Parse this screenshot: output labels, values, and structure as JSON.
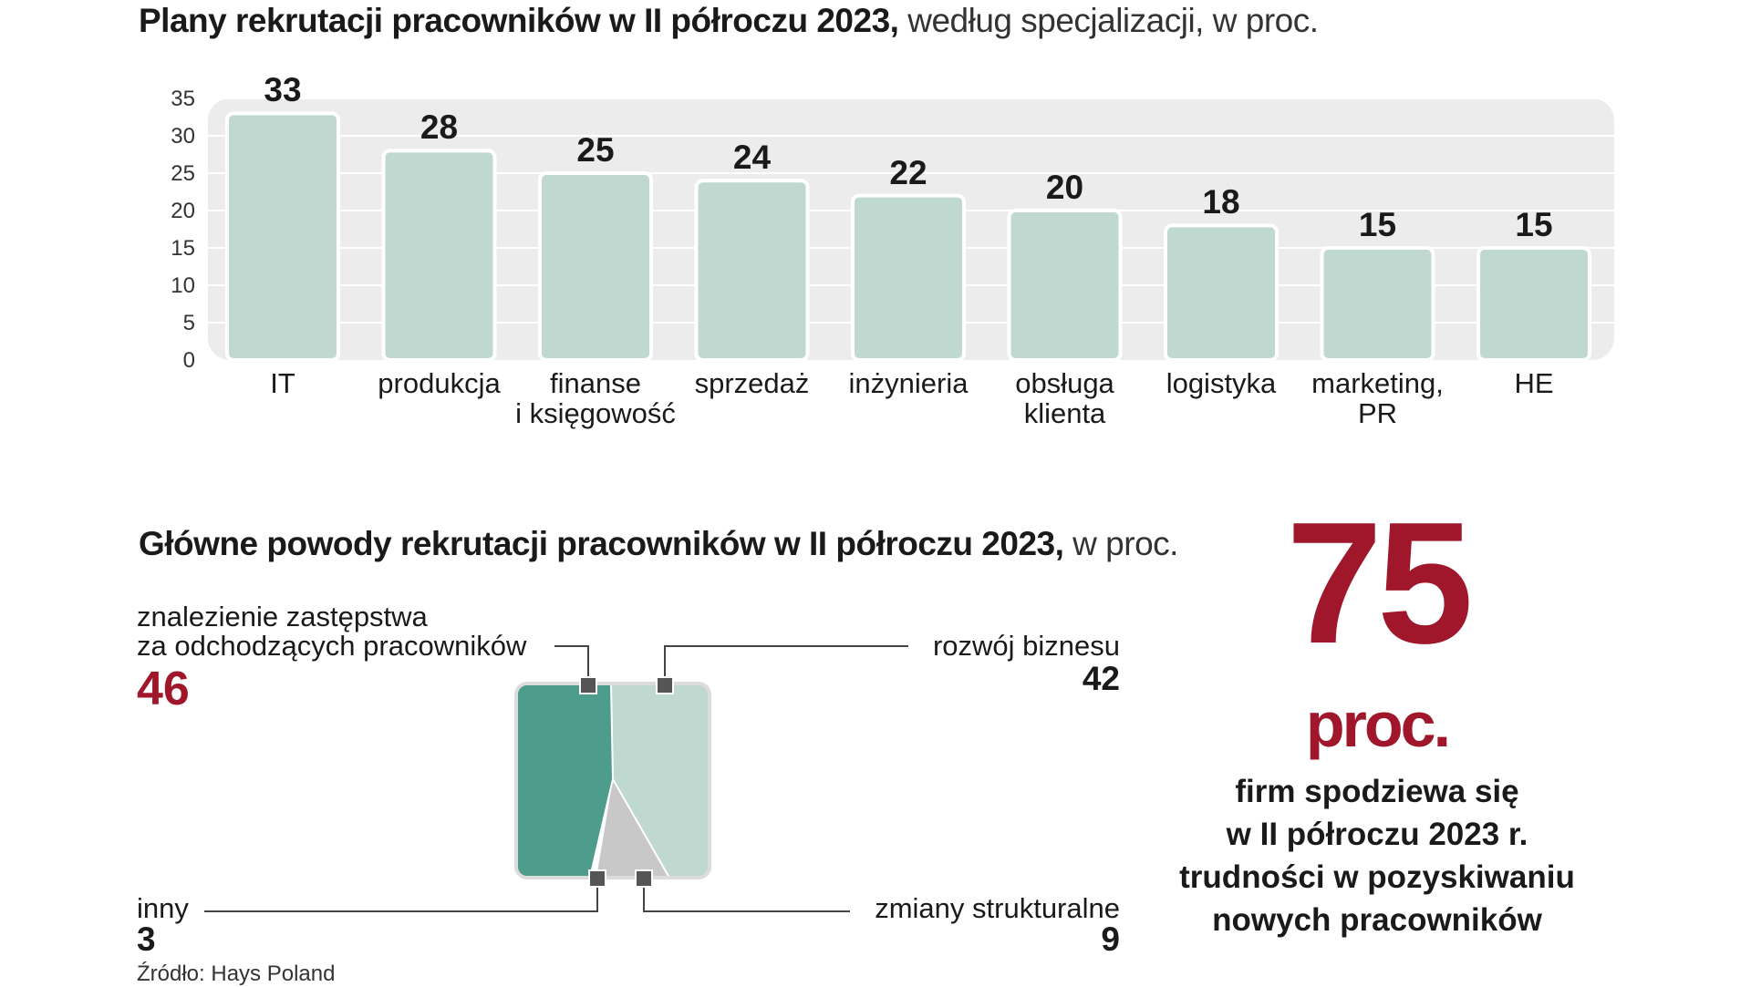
{
  "chart1": {
    "title_bold": "Plany rekrutacji pracowników w II półroczu 2023,",
    "title_rest": " według specjalizacji, w proc.",
    "y_ticks": [
      "35",
      "30",
      "25",
      "20",
      "15",
      "10",
      "5",
      "0"
    ]
  },
  "chart_data": [
    {
      "type": "bar",
      "categories": [
        "IT",
        "produkcja",
        "finanse i księgowość",
        "sprzedaż",
        "inżynieria",
        "obsługa klienta",
        "logistyka",
        "marketing, PR",
        "HE"
      ],
      "category_lines": [
        [
          "IT"
        ],
        [
          "produkcja"
        ],
        [
          "finanse",
          "i księgowość"
        ],
        [
          "sprzedaż"
        ],
        [
          "inżynieria"
        ],
        [
          "obsługa",
          "klienta"
        ],
        [
          "logistyka"
        ],
        [
          "marketing,",
          "PR"
        ],
        [
          "HE"
        ]
      ],
      "values": [
        33,
        28,
        25,
        24,
        22,
        20,
        18,
        15,
        15
      ],
      "ylim": [
        0,
        35
      ],
      "grid": true,
      "bar_color": "#c0d9d0"
    },
    {
      "type": "pie",
      "title": "Główne powody rekrutacji pracowników w II półroczu 2023,",
      "segments": [
        {
          "label_lines": [
            "znalezienie zastępstwa",
            "za odchodzących pracowników"
          ],
          "value": "46",
          "color": "#4e9c8c"
        },
        {
          "label_lines": [
            "rozwój biznesu"
          ],
          "value": "42",
          "color": "#c0d9d0"
        },
        {
          "label_lines": [
            "inny"
          ],
          "value": "3",
          "color": "#ffffff"
        },
        {
          "label_lines": [
            "zmiany strukturalne"
          ],
          "value": "9",
          "color": "#c8c8c8"
        }
      ]
    }
  ],
  "chart2": {
    "title_bold": "Główne powody rekrutacji pracowników w II półroczu 2023,",
    "title_rest": " w proc."
  },
  "highlight": {
    "number": "75",
    "unit": "proc.",
    "text_lines": [
      "firm spodziewa się",
      "w II półroczu 2023 r.",
      "trudności w pozyskiwaniu",
      "nowych pracowników"
    ]
  },
  "source": "Źródło: Hays Poland",
  "colors": {
    "accent": "#a0172b",
    "dark_teal": "#4e9c8c",
    "light_teal": "#c0d9d0",
    "grey": "#c8c8c8",
    "panel": "#ececec"
  }
}
